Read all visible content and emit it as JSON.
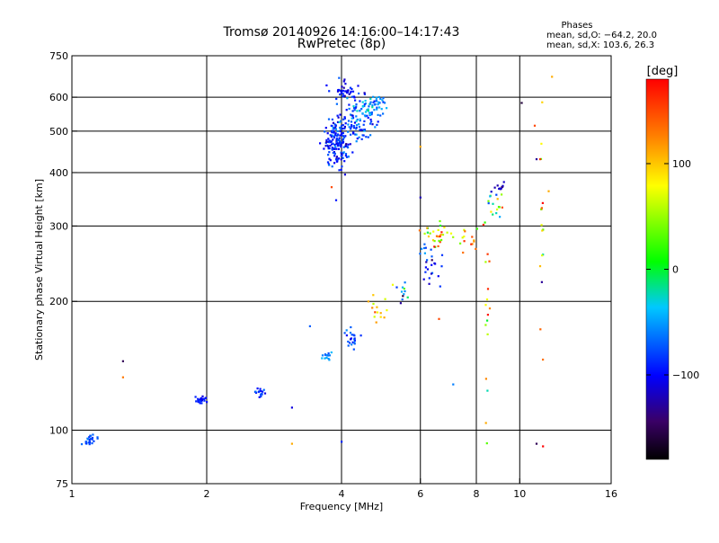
{
  "chart_data": {
    "type": "scatter",
    "title": "Tromsø 20140926 14:16:00–14:17:43",
    "subtitle": "RwPretec (8p)",
    "xlabel": "Frequency [MHz]",
    "ylabel": "Stationary phase Virtual Height [km]",
    "x_scale": "log",
    "y_scale": "log",
    "xlim": [
      1,
      16
    ],
    "ylim": [
      75,
      750
    ],
    "x_ticks": [
      1,
      2,
      4,
      6,
      8,
      10,
      16
    ],
    "x_tick_labels": [
      "1",
      "2",
      "4",
      "6",
      "8",
      "10",
      "16"
    ],
    "y_ticks": [
      75,
      100,
      200,
      300,
      400,
      500,
      600,
      750
    ],
    "y_tick_labels": [
      "75",
      "100",
      "200",
      "300",
      "400",
      "500",
      "600",
      "750"
    ],
    "x_gridlines": [
      2,
      4,
      6,
      8,
      10
    ],
    "y_gridlines": [
      100,
      200,
      300,
      400,
      500,
      600
    ],
    "grid": true,
    "stats": {
      "heading": "Phases",
      "line_o": "mean, sd,O: −64.2, 20.0",
      "line_x": "mean, sd,X: 103.6, 26.3"
    },
    "colorbar": {
      "label": "[deg]",
      "range": [
        -180,
        180
      ],
      "tick_values": [
        100,
        0,
        -100
      ],
      "tick_labels": [
        "100",
        "0",
        "−100"
      ],
      "colors": [
        "#000000",
        "#3a0066",
        "#0000ff",
        "#00c8ff",
        "#00ff00",
        "#ffff00",
        "#ff8000",
        "#ff0000"
      ]
    },
    "point_size_deg": 1,
    "clusters": [
      {
        "x": 1.1,
        "y": 95,
        "sx": 0.025,
        "sy": 1.5,
        "n": 24,
        "phase": -75,
        "sd": 12
      },
      {
        "x": 1.93,
        "y": 118,
        "sx": 0.04,
        "sy": 1.5,
        "n": 22,
        "phase": -95,
        "sd": 10
      },
      {
        "x": 2.62,
        "y": 123,
        "sx": 0.05,
        "sy": 1.5,
        "n": 16,
        "phase": -85,
        "sd": 12
      },
      {
        "x": 3.7,
        "y": 148,
        "sx": 0.05,
        "sy": 2.5,
        "n": 14,
        "phase": -60,
        "sd": 15
      },
      {
        "x": 4.2,
        "y": 165,
        "sx": 0.1,
        "sy": 6,
        "n": 22,
        "phase": -65,
        "sd": 18
      },
      {
        "x": 4.85,
        "y": 192,
        "sx": 0.18,
        "sy": 8,
        "n": 14,
        "phase": 90,
        "sd": 40
      },
      {
        "x": 5.5,
        "y": 210,
        "sx": 0.15,
        "sy": 8,
        "n": 12,
        "phase": -30,
        "sd": 50
      },
      {
        "x": 6.3,
        "y": 245,
        "sx": 0.2,
        "sy": 14,
        "n": 26,
        "phase": -95,
        "sd": 25
      },
      {
        "x": 6.6,
        "y": 285,
        "sx": 0.3,
        "sy": 10,
        "n": 30,
        "phase": 80,
        "sd": 50
      },
      {
        "x": 7.8,
        "y": 290,
        "sx": 0.4,
        "sy": 12,
        "n": 16,
        "phase": 90,
        "sd": 40
      },
      {
        "x": 8.8,
        "y": 340,
        "sx": 0.25,
        "sy": 18,
        "n": 16,
        "phase": 20,
        "sd": 70
      },
      {
        "x": 9.0,
        "y": 370,
        "sx": 0.15,
        "sy": 6,
        "n": 12,
        "phase": -110,
        "sd": 15
      },
      {
        "x": 3.9,
        "y": 470,
        "sx": 0.12,
        "sy": 35,
        "n": 170,
        "phase": -90,
        "sd": 18
      },
      {
        "x": 4.3,
        "y": 520,
        "sx": 0.2,
        "sy": 30,
        "n": 80,
        "phase": -75,
        "sd": 20
      },
      {
        "x": 4.7,
        "y": 575,
        "sx": 0.2,
        "sy": 20,
        "n": 60,
        "phase": -60,
        "sd": 20
      },
      {
        "x": 4.1,
        "y": 620,
        "sx": 0.15,
        "sy": 15,
        "n": 40,
        "phase": -100,
        "sd": 15
      },
      {
        "x": 8.45,
        "y": 200,
        "sx": 0.05,
        "sy": 60,
        "n": 14,
        "phase": 100,
        "sd": 60
      },
      {
        "x": 11.2,
        "y": 300,
        "sx": 0.05,
        "sy": 150,
        "n": 18,
        "phase": 90,
        "sd": 70
      }
    ],
    "outliers": [
      {
        "x": 1.3,
        "y": 145,
        "phase": -150
      },
      {
        "x": 1.3,
        "y": 133,
        "phase": 130
      },
      {
        "x": 3.1,
        "y": 93,
        "phase": 110
      },
      {
        "x": 4.0,
        "y": 94,
        "phase": -90
      },
      {
        "x": 3.1,
        "y": 113,
        "phase": -110
      },
      {
        "x": 3.4,
        "y": 175,
        "phase": -70
      },
      {
        "x": 3.8,
        "y": 370,
        "phase": 150
      },
      {
        "x": 6.0,
        "y": 350,
        "phase": -120
      },
      {
        "x": 6.0,
        "y": 460,
        "phase": 110
      },
      {
        "x": 10.1,
        "y": 582,
        "phase": -160
      },
      {
        "x": 11.8,
        "y": 670,
        "phase": 110
      },
      {
        "x": 10.8,
        "y": 515,
        "phase": 150
      },
      {
        "x": 10.9,
        "y": 430,
        "phase": -130
      },
      {
        "x": 11.1,
        "y": 430,
        "phase": 160
      },
      {
        "x": 11.6,
        "y": 362,
        "phase": 110
      },
      {
        "x": 11.2,
        "y": 222,
        "phase": -130
      },
      {
        "x": 8.4,
        "y": 104,
        "phase": 110
      },
      {
        "x": 10.9,
        "y": 93,
        "phase": -150
      },
      {
        "x": 7.1,
        "y": 128,
        "phase": -60
      },
      {
        "x": 6.6,
        "y": 182,
        "phase": 150
      }
    ]
  }
}
